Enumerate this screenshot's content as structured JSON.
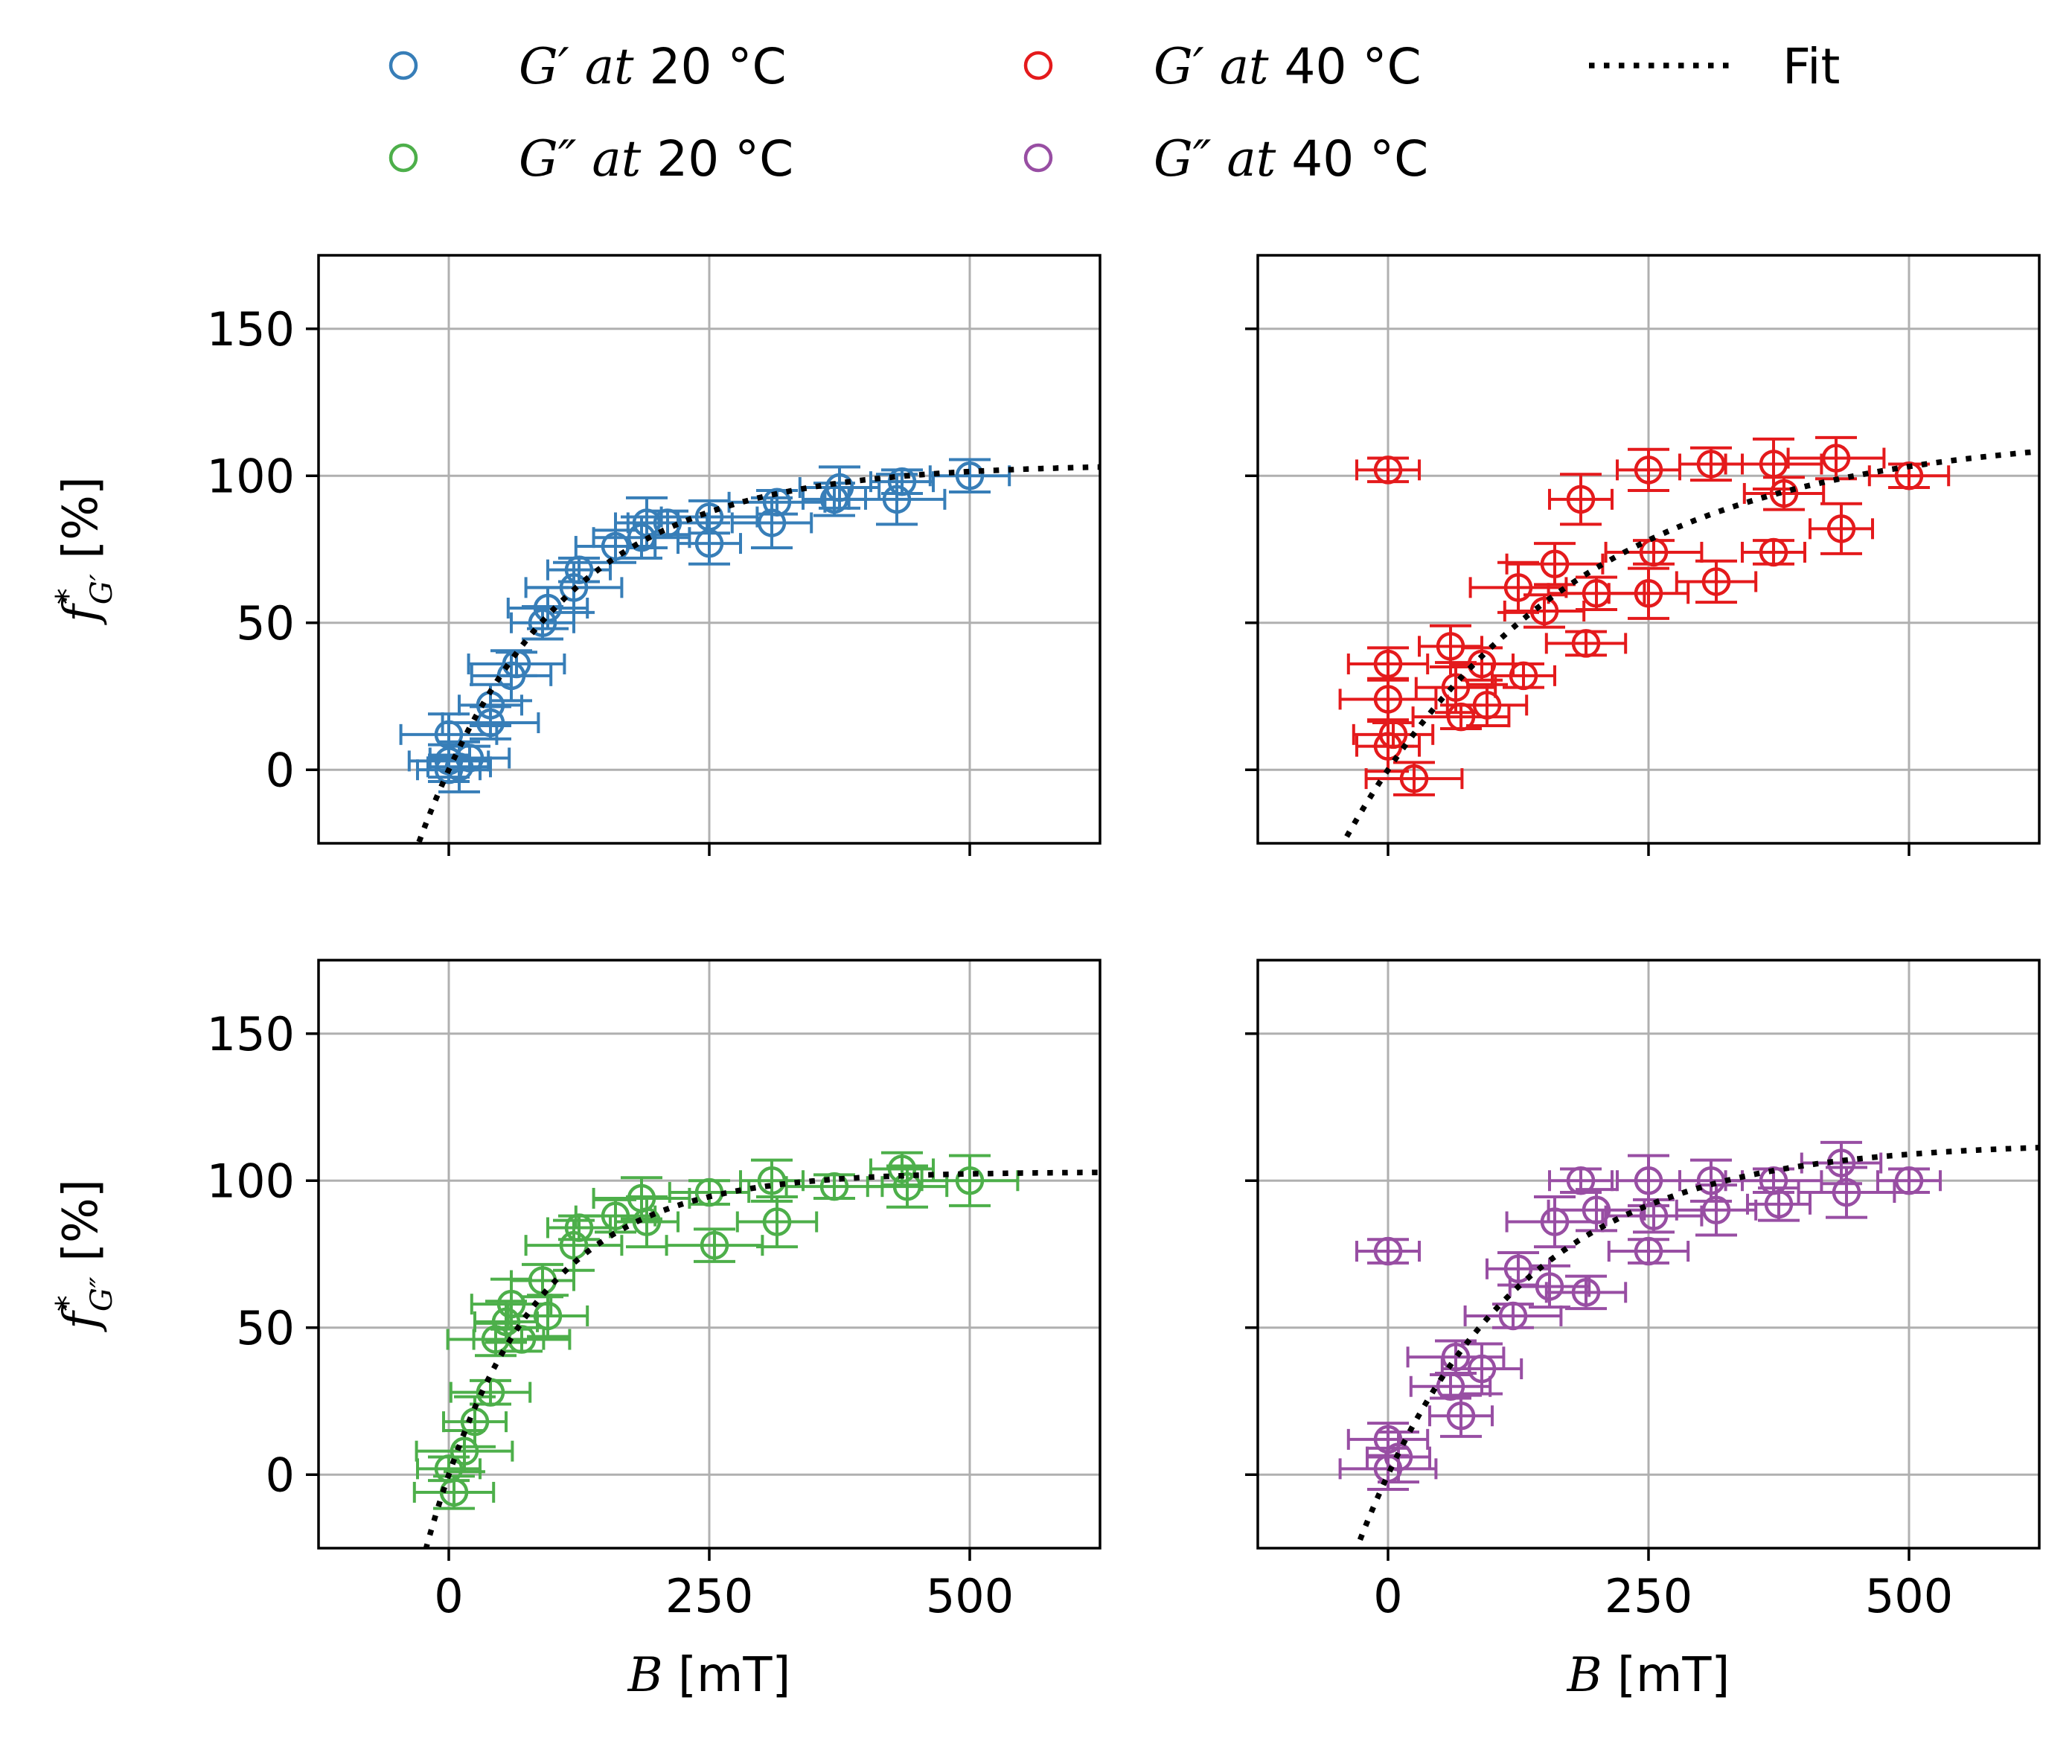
{
  "legend": {
    "items": [
      {
        "key": "g1_20",
        "label": "G′ at 20 °C",
        "color": "#377eb8",
        "kind": "marker"
      },
      {
        "key": "g2_20",
        "label": "G″ at 20 °C",
        "color": "#4daf4a",
        "kind": "marker"
      },
      {
        "key": "g1_40",
        "label": "G′ at 40 °C",
        "color": "#e41a1c",
        "kind": "marker"
      },
      {
        "key": "g2_40",
        "label": "G″ at 40 °C",
        "color": "#984ea3",
        "kind": "marker"
      },
      {
        "key": "fit",
        "label": "Fit",
        "color": "#000000",
        "kind": "line"
      }
    ]
  },
  "chart_data": [
    {
      "id": "top-left",
      "type": "scatter",
      "series_name": "G′ at 20 °C",
      "color": "#377eb8",
      "ylabel": "f*_G′ [%]",
      "xlabel": "",
      "xlim": [
        -125,
        625
      ],
      "ylim": [
        -25,
        175
      ],
      "xticks": [
        0,
        250,
        500
      ],
      "yticks": [
        0,
        50,
        100,
        150
      ],
      "show_xticklabels": false,
      "show_yticklabels": true,
      "fit": {
        "Fmax": 104,
        "B0": 135
      },
      "points": [
        [
          0,
          0
        ],
        [
          0,
          3
        ],
        [
          0,
          12
        ],
        [
          10,
          1
        ],
        [
          20,
          4
        ],
        [
          40,
          16
        ],
        [
          40,
          22
        ],
        [
          60,
          32
        ],
        [
          65,
          36
        ],
        [
          90,
          50
        ],
        [
          95,
          55
        ],
        [
          120,
          62
        ],
        [
          125,
          68
        ],
        [
          160,
          76
        ],
        [
          185,
          79
        ],
        [
          190,
          84
        ],
        [
          210,
          84
        ],
        [
          250,
          86
        ],
        [
          250,
          77
        ],
        [
          310,
          84
        ],
        [
          315,
          91
        ],
        [
          370,
          92
        ],
        [
          375,
          96
        ],
        [
          430,
          92
        ],
        [
          435,
          98
        ],
        [
          500,
          100
        ]
      ]
    },
    {
      "id": "top-right",
      "type": "scatter",
      "series_name": "G′ at 40 °C",
      "color": "#e41a1c",
      "ylabel": "",
      "xlabel": "",
      "xlim": [
        -125,
        625
      ],
      "ylim": [
        -25,
        175
      ],
      "xticks": [
        0,
        250,
        500
      ],
      "yticks": [
        0,
        50,
        100,
        150
      ],
      "show_xticklabels": false,
      "show_yticklabels": false,
      "fit": {
        "Fmax": 115,
        "B0": 220
      },
      "points": [
        [
          0,
          102
        ],
        [
          0,
          36
        ],
        [
          0,
          24
        ],
        [
          0,
          8
        ],
        [
          5,
          12
        ],
        [
          25,
          -3
        ],
        [
          60,
          42
        ],
        [
          65,
          28
        ],
        [
          70,
          18
        ],
        [
          90,
          36
        ],
        [
          95,
          22
        ],
        [
          125,
          62
        ],
        [
          130,
          32
        ],
        [
          150,
          54
        ],
        [
          160,
          70
        ],
        [
          185,
          92
        ],
        [
          190,
          43
        ],
        [
          200,
          60
        ],
        [
          250,
          102
        ],
        [
          250,
          60
        ],
        [
          255,
          74
        ],
        [
          310,
          104
        ],
        [
          315,
          64
        ],
        [
          370,
          104
        ],
        [
          370,
          74
        ],
        [
          380,
          94
        ],
        [
          430,
          106
        ],
        [
          435,
          82
        ],
        [
          500,
          100
        ]
      ]
    },
    {
      "id": "bottom-left",
      "type": "scatter",
      "series_name": "G″ at 20 °C",
      "color": "#4daf4a",
      "ylabel": "f*_G″ [%]",
      "xlabel": "B [mT]",
      "xlim": [
        -125,
        625
      ],
      "ylim": [
        -25,
        175
      ],
      "xticks": [
        0,
        250,
        500
      ],
      "yticks": [
        0,
        50,
        100,
        150
      ],
      "show_xticklabels": true,
      "show_yticklabels": true,
      "fit": {
        "Fmax": 103,
        "B0": 100
      },
      "points": [
        [
          0,
          2
        ],
        [
          5,
          -6
        ],
        [
          15,
          8
        ],
        [
          25,
          18
        ],
        [
          40,
          28
        ],
        [
          45,
          46
        ],
        [
          55,
          52
        ],
        [
          60,
          58
        ],
        [
          70,
          46
        ],
        [
          90,
          66
        ],
        [
          95,
          54
        ],
        [
          120,
          78
        ],
        [
          125,
          84
        ],
        [
          160,
          88
        ],
        [
          185,
          94
        ],
        [
          190,
          86
        ],
        [
          250,
          96
        ],
        [
          255,
          78
        ],
        [
          310,
          100
        ],
        [
          315,
          86
        ],
        [
          370,
          98
        ],
        [
          435,
          104
        ],
        [
          440,
          98
        ],
        [
          500,
          100
        ]
      ]
    },
    {
      "id": "bottom-right",
      "type": "scatter",
      "series_name": "G″ at 40 °C",
      "color": "#984ea3",
      "ylabel": "",
      "xlabel": "B [mT]",
      "xlim": [
        -125,
        625
      ],
      "ylim": [
        -25,
        175
      ],
      "xticks": [
        0,
        250,
        500
      ],
      "yticks": [
        0,
        50,
        100,
        150
      ],
      "show_xticklabels": true,
      "show_yticklabels": false,
      "fit": {
        "Fmax": 113,
        "B0": 150
      },
      "points": [
        [
          0,
          76
        ],
        [
          0,
          12
        ],
        [
          0,
          2
        ],
        [
          10,
          6
        ],
        [
          60,
          30
        ],
        [
          65,
          40
        ],
        [
          70,
          20
        ],
        [
          90,
          36
        ],
        [
          120,
          54
        ],
        [
          125,
          70
        ],
        [
          155,
          64
        ],
        [
          160,
          86
        ],
        [
          185,
          100
        ],
        [
          190,
          62
        ],
        [
          200,
          90
        ],
        [
          250,
          100
        ],
        [
          250,
          76
        ],
        [
          255,
          88
        ],
        [
          310,
          100
        ],
        [
          315,
          90
        ],
        [
          370,
          100
        ],
        [
          375,
          92
        ],
        [
          435,
          106
        ],
        [
          440,
          96
        ],
        [
          500,
          100
        ]
      ]
    }
  ]
}
